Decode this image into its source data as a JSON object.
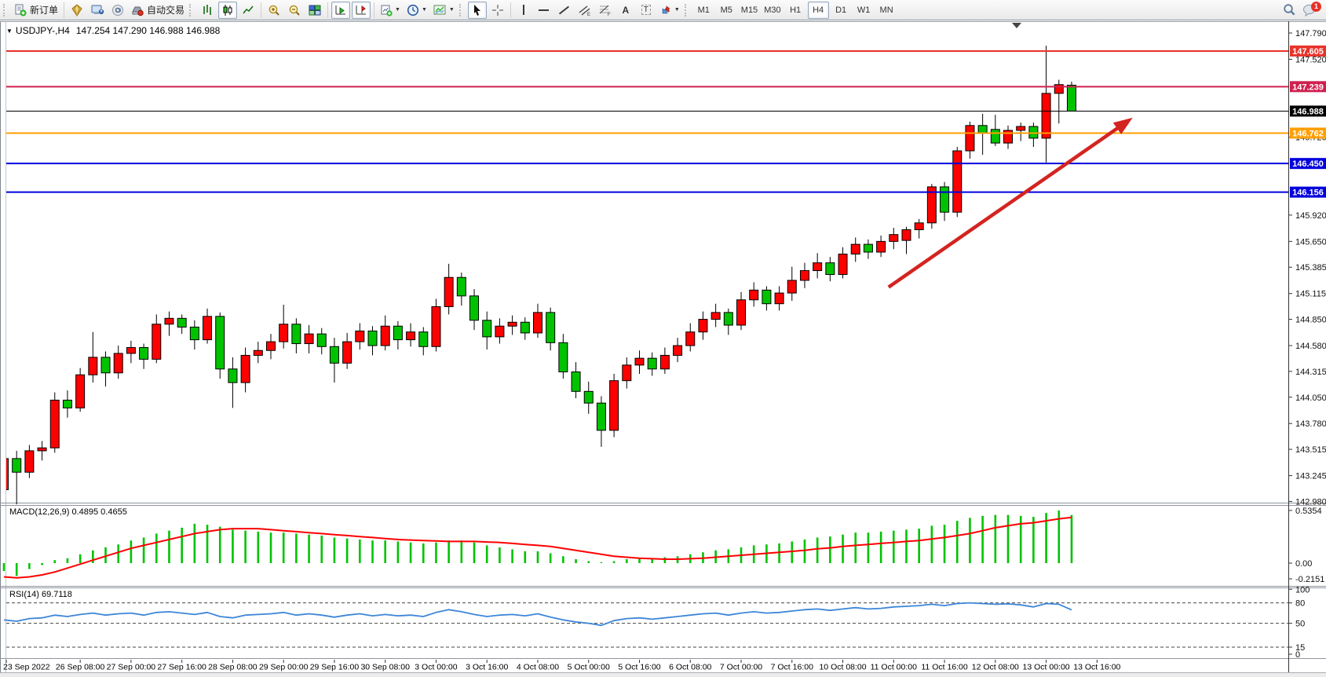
{
  "window": {
    "symbol_title": "USDJPY-,H4",
    "ohlc_text": "147.254 147.290 146.988 146.988"
  },
  "toolbar": {
    "new_order_label": "新订单",
    "auto_trading_label": "自动交易",
    "timeframes": [
      "M1",
      "M5",
      "M15",
      "M30",
      "H1",
      "H4",
      "D1",
      "W1",
      "MN"
    ],
    "active_timeframe": "H4",
    "notification_count": "1"
  },
  "chart_data": {
    "type": "candlestick",
    "symbol": "USDJPY-",
    "timeframe": "H4",
    "last_bar": {
      "open": 147.254,
      "high": 147.29,
      "low": 146.988,
      "close": 146.988
    },
    "up_color": "#fe0000",
    "down_color": "#00c300",
    "y_axis": {
      "high": 147.79,
      "low": 142.98,
      "ticks": [
        "147.790",
        "147.520",
        "146.720",
        "145.920",
        "145.650",
        "145.385",
        "145.115",
        "144.850",
        "144.580",
        "144.315",
        "144.050",
        "143.780",
        "143.515",
        "143.245",
        "142.980"
      ]
    },
    "x_labels": [
      "23 Sep 2022",
      "26 Sep 08:00",
      "27 Sep 00:00",
      "27 Sep 16:00",
      "28 Sep 08:00",
      "29 Sep 00:00",
      "29 Sep 16:00",
      "30 Sep 08:00",
      "3 Oct 00:00",
      "3 Oct 16:00",
      "4 Oct 08:00",
      "5 Oct 00:00",
      "5 Oct 16:00",
      "6 Oct 08:00",
      "7 Oct 00:00",
      "7 Oct 16:00",
      "10 Oct 08:00",
      "11 Oct 00:00",
      "11 Oct 16:00",
      "12 Oct 08:00",
      "13 Oct 00:00",
      "13 Oct 16:00"
    ],
    "h_lines": [
      {
        "price": 147.605,
        "label": "147.605",
        "color": "#e8332a",
        "width": 2
      },
      {
        "price": 147.239,
        "label": "147.239",
        "color": "#cf2050",
        "width": 2
      },
      {
        "price": 146.988,
        "label": "146.988",
        "color": "#000000",
        "width": 1
      },
      {
        "price": 146.762,
        "label": "146.762",
        "color": "#ff9f00",
        "width": 2
      },
      {
        "price": 146.45,
        "label": "146.450",
        "color": "#0000dd",
        "width": 2
      },
      {
        "price": 146.156,
        "label": "146.156",
        "color": "#0000dd",
        "width": 2
      }
    ],
    "arrow": {
      "from_bar": 69.6,
      "from_price": 145.18,
      "to_bar": 88.8,
      "to_price": 146.92,
      "color": "#d42420"
    },
    "candles": {
      "open": [
        143.1,
        143.42,
        143.28,
        143.5,
        143.53,
        144.02,
        143.94,
        144.28,
        144.46,
        144.3,
        144.5,
        144.56,
        144.44,
        144.8,
        144.86,
        144.77,
        144.64,
        144.88,
        144.34,
        144.2,
        144.48,
        144.53,
        144.62,
        144.8,
        144.6,
        144.7,
        144.57,
        144.4,
        144.62,
        144.73,
        144.58,
        144.78,
        144.64,
        144.72,
        144.57,
        144.98,
        145.28,
        145.09,
        144.84,
        144.67,
        144.78,
        144.82,
        144.71,
        144.92,
        144.61,
        144.31,
        144.11,
        143.99,
        143.71,
        144.22,
        144.38,
        144.45,
        144.34,
        144.48,
        144.58,
        144.72,
        144.85,
        144.92,
        144.79,
        145.05,
        145.15,
        145.01,
        145.12,
        145.25,
        145.35,
        145.43,
        145.31,
        145.52,
        145.62,
        145.54,
        145.65,
        145.66,
        145.77,
        145.84,
        146.21,
        145.95,
        146.58,
        146.84,
        146.8,
        146.66,
        146.79,
        146.83,
        146.71,
        147.17,
        147.254
      ],
      "high": [
        143.45,
        143.5,
        143.56,
        143.6,
        144.1,
        144.12,
        144.35,
        144.72,
        144.52,
        144.58,
        144.63,
        144.6,
        144.9,
        144.93,
        144.9,
        144.84,
        144.96,
        144.92,
        144.46,
        144.56,
        144.62,
        144.7,
        145.0,
        144.86,
        144.79,
        144.76,
        144.66,
        144.71,
        144.81,
        144.78,
        144.89,
        144.83,
        144.81,
        144.77,
        145.06,
        145.42,
        145.33,
        145.16,
        144.93,
        144.86,
        144.89,
        144.87,
        145.01,
        144.97,
        144.7,
        144.41,
        144.21,
        144.06,
        144.29,
        144.46,
        144.53,
        144.51,
        144.56,
        144.66,
        144.81,
        144.93,
        145.01,
        144.96,
        145.13,
        145.23,
        145.19,
        145.19,
        145.39,
        145.43,
        145.53,
        145.49,
        145.59,
        145.69,
        145.67,
        145.71,
        145.79,
        145.8,
        145.88,
        146.24,
        146.26,
        146.62,
        146.88,
        146.96,
        146.95,
        146.84,
        146.87,
        146.87,
        147.66,
        147.31,
        147.29
      ],
      "low": [
        143.02,
        142.95,
        143.22,
        143.4,
        143.48,
        143.84,
        143.9,
        144.2,
        144.16,
        144.24,
        144.4,
        144.34,
        144.4,
        144.68,
        144.7,
        144.54,
        144.6,
        144.24,
        143.94,
        144.1,
        144.4,
        144.44,
        144.55,
        144.5,
        144.5,
        144.49,
        144.2,
        144.34,
        144.54,
        144.48,
        144.53,
        144.54,
        144.57,
        144.48,
        144.52,
        144.9,
        144.99,
        144.74,
        144.54,
        144.6,
        144.69,
        144.64,
        144.66,
        144.53,
        144.24,
        144.04,
        143.88,
        143.54,
        143.64,
        144.14,
        144.29,
        144.27,
        144.29,
        144.41,
        144.52,
        144.64,
        144.77,
        144.69,
        144.74,
        144.98,
        144.94,
        144.94,
        145.04,
        145.17,
        145.27,
        145.24,
        145.27,
        145.44,
        145.47,
        145.49,
        145.57,
        145.52,
        145.68,
        145.78,
        145.86,
        145.9,
        146.5,
        146.54,
        146.63,
        146.6,
        146.68,
        146.62,
        146.46,
        146.86,
        146.988
      ],
      "close": [
        143.42,
        143.28,
        143.5,
        143.53,
        144.02,
        143.94,
        144.28,
        144.46,
        144.3,
        144.5,
        144.56,
        144.44,
        144.8,
        144.86,
        144.77,
        144.64,
        144.88,
        144.34,
        144.2,
        144.48,
        144.53,
        144.62,
        144.8,
        144.6,
        144.7,
        144.57,
        144.4,
        144.62,
        144.73,
        144.58,
        144.78,
        144.64,
        144.72,
        144.57,
        144.98,
        145.28,
        145.09,
        144.84,
        144.67,
        144.78,
        144.82,
        144.71,
        144.92,
        144.61,
        144.31,
        144.11,
        143.99,
        143.71,
        144.22,
        144.38,
        144.45,
        144.34,
        144.48,
        144.58,
        144.72,
        144.85,
        144.92,
        144.79,
        145.05,
        145.15,
        145.01,
        145.12,
        145.25,
        145.35,
        145.43,
        145.31,
        145.52,
        145.62,
        145.54,
        145.65,
        145.72,
        145.77,
        145.84,
        146.21,
        145.95,
        146.58,
        146.84,
        146.76,
        146.66,
        146.79,
        146.83,
        146.71,
        147.17,
        147.26,
        146.988
      ]
    },
    "macd": {
      "label_text": "MACD(12,26,9) 0.4895 0.4655",
      "main_value": 0.4895,
      "signal_value": 0.4655,
      "axis_labels": [
        "0.5354",
        "0.00",
        "-0.2151"
      ],
      "histogram_color": "#00c300",
      "signal_color": "#fe0000",
      "histogram": [
        -0.08,
        -0.13,
        -0.06,
        -0.02,
        0.03,
        0.05,
        0.09,
        0.13,
        0.16,
        0.19,
        0.23,
        0.26,
        0.3,
        0.33,
        0.36,
        0.4,
        0.39,
        0.37,
        0.34,
        0.33,
        0.32,
        0.31,
        0.31,
        0.3,
        0.29,
        0.28,
        0.26,
        0.25,
        0.24,
        0.23,
        0.23,
        0.22,
        0.21,
        0.2,
        0.21,
        0.23,
        0.23,
        0.21,
        0.18,
        0.16,
        0.14,
        0.12,
        0.12,
        0.1,
        0.07,
        0.04,
        0.02,
        0.01,
        0.02,
        0.04,
        0.05,
        0.05,
        0.06,
        0.07,
        0.09,
        0.11,
        0.13,
        0.14,
        0.16,
        0.18,
        0.19,
        0.2,
        0.22,
        0.24,
        0.26,
        0.27,
        0.29,
        0.31,
        0.31,
        0.32,
        0.33,
        0.34,
        0.35,
        0.38,
        0.39,
        0.43,
        0.46,
        0.48,
        0.49,
        0.49,
        0.48,
        0.47,
        0.51,
        0.5354,
        0.4895
      ],
      "signal": [
        -0.14,
        -0.15,
        -0.14,
        -0.12,
        -0.09,
        -0.05,
        -0.01,
        0.03,
        0.07,
        0.11,
        0.15,
        0.18,
        0.21,
        0.24,
        0.27,
        0.3,
        0.32,
        0.34,
        0.35,
        0.35,
        0.35,
        0.34,
        0.33,
        0.32,
        0.31,
        0.3,
        0.29,
        0.28,
        0.27,
        0.26,
        0.25,
        0.24,
        0.235,
        0.23,
        0.225,
        0.22,
        0.22,
        0.22,
        0.215,
        0.21,
        0.2,
        0.19,
        0.18,
        0.17,
        0.15,
        0.13,
        0.11,
        0.09,
        0.07,
        0.06,
        0.05,
        0.045,
        0.04,
        0.04,
        0.045,
        0.05,
        0.06,
        0.07,
        0.08,
        0.09,
        0.1,
        0.11,
        0.12,
        0.13,
        0.145,
        0.155,
        0.17,
        0.18,
        0.19,
        0.2,
        0.21,
        0.22,
        0.23,
        0.245,
        0.26,
        0.28,
        0.3,
        0.33,
        0.36,
        0.38,
        0.4,
        0.41,
        0.43,
        0.45,
        0.4655
      ]
    },
    "rsi": {
      "label_text": "RSI(14) 69.7118",
      "value": 69.7118,
      "line_color": "#3d86d8",
      "levels": [
        80,
        50,
        15
      ],
      "axis_labels": [
        "100",
        "80",
        "50",
        "15",
        "0"
      ],
      "values": [
        55,
        53,
        57,
        58,
        62,
        60,
        63,
        65,
        62,
        64,
        65,
        62,
        66,
        67,
        65,
        63,
        66,
        60,
        58,
        62,
        63,
        64,
        66,
        62,
        64,
        62,
        59,
        62,
        64,
        61,
        63,
        61,
        62,
        60,
        66,
        70,
        67,
        63,
        60,
        62,
        63,
        61,
        64,
        59,
        55,
        52,
        50,
        47,
        54,
        57,
        58,
        56,
        58,
        60,
        62,
        64,
        65,
        62,
        65,
        67,
        65,
        66,
        68,
        70,
        71,
        69,
        71,
        73,
        71,
        72,
        74,
        75,
        76,
        78,
        76,
        79,
        80,
        79,
        78,
        78.5,
        77,
        74,
        79,
        78,
        69.7
      ]
    }
  }
}
